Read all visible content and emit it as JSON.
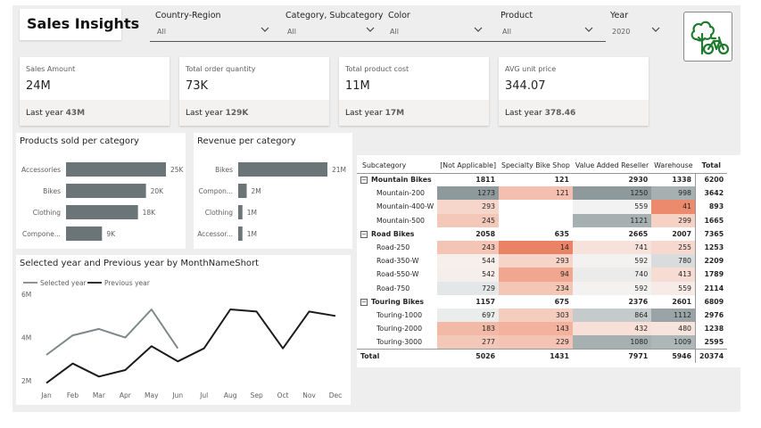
{
  "header": {
    "title": "Sales Insights"
  },
  "slicers": [
    {
      "label": "Country-Region",
      "value": "All"
    },
    {
      "label": "Category, Subcategory",
      "value": "All"
    },
    {
      "label": "Color",
      "value": "All"
    },
    {
      "label": "Product",
      "value": "All"
    },
    {
      "label": "Year",
      "value": "2020"
    }
  ],
  "logo": {
    "icon": "tree-bike-icon",
    "color": "#1e7a2e"
  },
  "kpis": [
    {
      "label": "Sales Amount",
      "value": "24M",
      "prev_prefix": "Last year",
      "prev_value": "43M"
    },
    {
      "label": "Total order quantity",
      "value": "73K",
      "prev_prefix": "Last year",
      "prev_value": "129K"
    },
    {
      "label": "Total product cost",
      "value": "11M",
      "prev_prefix": "Last year",
      "prev_value": "17M"
    },
    {
      "label": "AVG unit price",
      "value": "344.07",
      "prev_prefix": "Last year",
      "prev_value": "378.46"
    }
  ],
  "chart_data": [
    {
      "type": "bar",
      "orientation": "horizontal",
      "title": "Products sold per category",
      "categories": [
        "Accessories",
        "Bikes",
        "Clothing",
        "Compone..."
      ],
      "values": [
        25000,
        20000,
        18000,
        9000
      ],
      "labels": [
        "25K",
        "20K",
        "18K",
        "9K"
      ],
      "xlim": [
        0,
        25000
      ],
      "color": "#6b7578"
    },
    {
      "type": "bar",
      "orientation": "horizontal",
      "title": "Revenue per category",
      "categories": [
        "Bikes",
        "Compon...",
        "Clothing",
        "Accessor..."
      ],
      "values": [
        21000000,
        2000000,
        1000000,
        1000000
      ],
      "labels": [
        "21M",
        "2M",
        "1M",
        "1M"
      ],
      "xlim": [
        0,
        21000000
      ],
      "color": "#6b7578"
    },
    {
      "type": "line",
      "title": "Selected year and Previous year by MonthNameShort",
      "categories": [
        "Jan",
        "Feb",
        "Mar",
        "Apr",
        "May",
        "Jun",
        "Jul",
        "Aug",
        "Sep",
        "Oct",
        "Nov",
        "Dec"
      ],
      "y_ticks": [
        {
          "value": 6000000,
          "label": "6M"
        },
        {
          "value": 4000000,
          "label": "4M"
        },
        {
          "value": 2000000,
          "label": "2M"
        }
      ],
      "ylim": [
        1800000,
        6000000
      ],
      "series": [
        {
          "name": "Selected year",
          "color": "#7f8889",
          "values": [
            3200000,
            4100000,
            4400000,
            4000000,
            5300000,
            3500000,
            null,
            null,
            null,
            null,
            null,
            null
          ]
        },
        {
          "name": "Previous year",
          "color": "#1c1c1c",
          "values": [
            1900000,
            2800000,
            2200000,
            2500000,
            3600000,
            2900000,
            3500000,
            5300000,
            5200000,
            3500000,
            5200000,
            5000000
          ]
        }
      ],
      "legend_position": "top-left"
    }
  ],
  "matrix": {
    "headers": [
      "Subcategory",
      "[Not Applicable]",
      "Specialty Bike Shop",
      "Value Added Reseller",
      "Warehouse",
      "Total"
    ],
    "rows": [
      {
        "type": "group",
        "label": "Mountain Bikes",
        "values": [
          "1811",
          "121",
          "2930",
          "1338",
          "6200"
        ]
      },
      {
        "type": "item",
        "label": "Mountain-200",
        "values": [
          "1273",
          "121",
          "1250",
          "998",
          "3642"
        ],
        "colors": [
          "#8d999b",
          "#f4bfae",
          "#8d999b",
          "#a6b0b1"
        ]
      },
      {
        "type": "item",
        "label": "Mountain-400-W",
        "values": [
          "293",
          "",
          "559",
          "41",
          "893"
        ],
        "colors": [
          "#f6d6cb",
          "#ffffff",
          "#f3f2f2",
          "#eb8a6c"
        ]
      },
      {
        "type": "item",
        "label": "Mountain-500",
        "values": [
          "245",
          "",
          "1121",
          "299",
          "1665"
        ],
        "colors": [
          "#f4c8b9",
          "#ffffff",
          "#a6b0b1",
          "#f6d2c5"
        ]
      },
      {
        "type": "group",
        "label": "Road Bikes",
        "values": [
          "2058",
          "635",
          "2665",
          "2007",
          "7365"
        ]
      },
      {
        "type": "item",
        "label": "Road-250",
        "values": [
          "243",
          "14",
          "741",
          "255",
          "1253"
        ],
        "colors": [
          "#f4c4b4",
          "#ea8365",
          "#f6e2db",
          "#f6d8ce"
        ]
      },
      {
        "type": "item",
        "label": "Road-350-W",
        "values": [
          "544",
          "293",
          "592",
          "780",
          "2209"
        ],
        "colors": [
          "#f6efec",
          "#f6d4c8",
          "#f4f2f1",
          "#d8dcdc"
        ]
      },
      {
        "type": "item",
        "label": "Road-550-W",
        "values": [
          "542",
          "94",
          "740",
          "413",
          "1789"
        ],
        "colors": [
          "#f6eeea",
          "#f1a78f",
          "#ecebeb",
          "#f6dcd3"
        ]
      },
      {
        "type": "item",
        "label": "Road-750",
        "values": [
          "729",
          "234",
          "592",
          "559",
          "2114"
        ],
        "colors": [
          "#e4e7e7",
          "#f4c6b6",
          "#f4f2f1",
          "#f6ebe6"
        ]
      },
      {
        "type": "group",
        "label": "Touring Bikes",
        "values": [
          "1157",
          "675",
          "2376",
          "2601",
          "6809"
        ]
      },
      {
        "type": "item",
        "label": "Touring-1000",
        "values": [
          "697",
          "303",
          "864",
          "1112",
          "2976"
        ],
        "colors": [
          "#ebecec",
          "#f4cdbf",
          "#c5cbcb",
          "#9aa4a6"
        ]
      },
      {
        "type": "item",
        "label": "Touring-2000",
        "values": [
          "183",
          "143",
          "432",
          "480",
          "1238"
        ],
        "colors": [
          "#f2b9a6",
          "#f3b29d",
          "#f6e0d7",
          "#f6e4dd"
        ]
      },
      {
        "type": "item",
        "label": "Touring-3000",
        "values": [
          "277",
          "229",
          "1080",
          "1009",
          "2595"
        ],
        "colors": [
          "#f4c8b8",
          "#f4c3b3",
          "#a6b0b1",
          "#aeb7b8"
        ]
      }
    ],
    "total": {
      "label": "Total",
      "values": [
        "5026",
        "1431",
        "7971",
        "5946",
        "20374"
      ]
    }
  }
}
